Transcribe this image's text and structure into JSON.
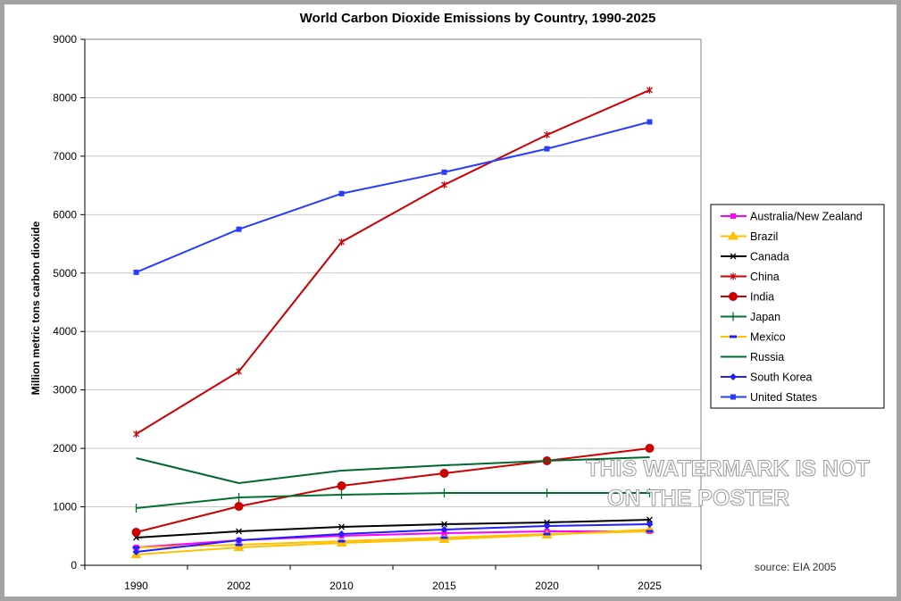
{
  "chart_data": {
    "type": "line",
    "title": "World Carbon Dioxide Emissions by Country, 1990-2025",
    "xlabel": "",
    "ylabel": "Million metric tons carbon dioxide",
    "categories": [
      "1990",
      "2002",
      "2010",
      "2015",
      "2020",
      "2025"
    ],
    "ylim": [
      0,
      9000
    ],
    "yticks": [
      0,
      1000,
      2000,
      3000,
      4000,
      5000,
      6000,
      7000,
      8000,
      9000
    ],
    "grid": "horizontal",
    "legend_position": "right",
    "series": [
      {
        "name": "Australia/New Zealand",
        "color": "#ff00ff",
        "marker": "square",
        "values": [
          305,
          428,
          504,
          550,
          581,
          581
        ]
      },
      {
        "name": "Brazil",
        "color": "#ffc000",
        "marker": "triangle",
        "values": [
          183,
          305,
          382,
          443,
          520,
          611
        ]
      },
      {
        "name": "Canada",
        "color": "#000000",
        "marker": "x",
        "values": [
          474,
          581,
          657,
          703,
          733,
          779
        ]
      },
      {
        "name": "China",
        "color": "#cc0000",
        "marker": "star",
        "values": [
          2246,
          3316,
          5532,
          6510,
          7365,
          8130
        ]
      },
      {
        "name": "India",
        "color": "#cc0000",
        "marker": "circle",
        "values": [
          565,
          1008,
          1360,
          1574,
          1788,
          2002
        ]
      },
      {
        "name": "Japan",
        "color": "#007030",
        "marker": "plus",
        "values": [
          978,
          1161,
          1207,
          1238,
          1238,
          1238
        ]
      },
      {
        "name": "Mexico",
        "color": "#ffc000",
        "marker": "dash",
        "values": [
          305,
          351,
          413,
          474,
          535,
          581
        ]
      },
      {
        "name": "Russia",
        "color": "#006830",
        "marker": "none",
        "values": [
          1834,
          1406,
          1620,
          1711,
          1788,
          1849
        ]
      },
      {
        "name": "South Korea",
        "color": "#2020ff",
        "marker": "diamond",
        "values": [
          229,
          428,
          535,
          611,
          672,
          703
        ]
      },
      {
        "name": "United States",
        "color": "#2a3cff",
        "marker": "square",
        "values": [
          5013,
          5750,
          6360,
          6726,
          7126,
          7587
        ]
      }
    ],
    "annotations": {
      "source": "source: EIA 2005"
    }
  },
  "watermark": {
    "line1": "THIS WATERMARK IS NOT",
    "line2": "ON THE POSTER"
  }
}
